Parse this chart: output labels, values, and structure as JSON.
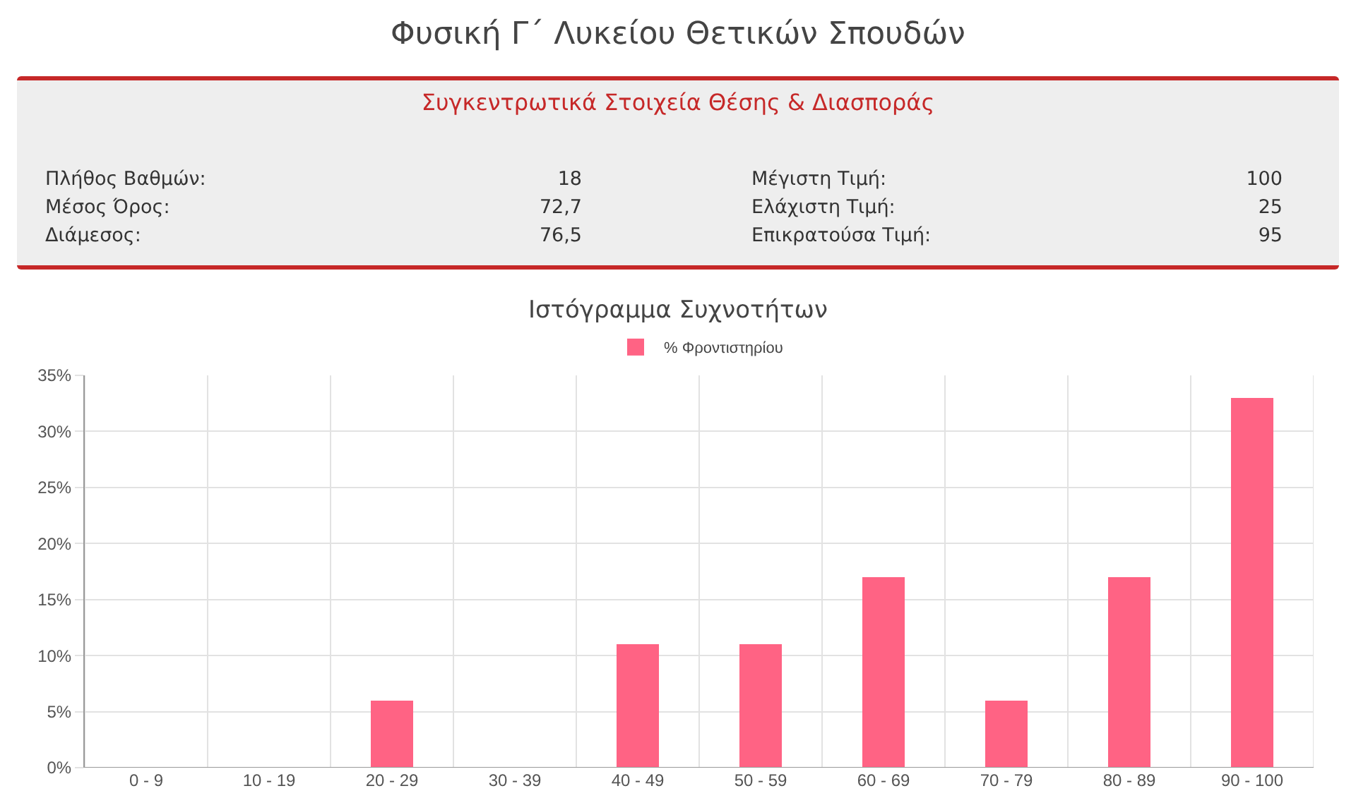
{
  "chart_data": [
    {
      "type": "other",
      "title": "Φυσική Γ΄ Λυκείου Θετικών Σπουδών",
      "subtitle": "Συγκεντρωτικά Στοιχεία Θέσης & Διασποράς",
      "annotations": [
        "Πλήθος Βαθμών:",
        "18",
        "Μέγιστη Τιμή:",
        "100",
        "Μέσος Όρος:",
        "72,7",
        "Ελάχιστη Τιμή:",
        "25",
        "Διάμεσος:",
        "76,5",
        "Επικρατούσα Τιμή:",
        "95"
      ]
    },
    {
      "type": "bar",
      "title": "Ιστόγραμμα Συχνοτήτων",
      "categories": [
        "0 - 9",
        "10 - 19",
        "20 - 29",
        "30 - 39",
        "40 - 49",
        "50 - 59",
        "60 - 69",
        "70 - 79",
        "80 - 89",
        "90 - 100"
      ],
      "series": [
        {
          "name": "% Φροντιστηρίου",
          "color": "#ff6384",
          "values": [
            0,
            0,
            6,
            0,
            11,
            11,
            17,
            6,
            17,
            33
          ]
        }
      ],
      "ylim": [
        0,
        35
      ],
      "yticks": [
        {
          "value": 0,
          "label": "0%"
        },
        {
          "value": 5,
          "label": "5%"
        },
        {
          "value": 10,
          "label": "10%"
        },
        {
          "value": 15,
          "label": "15%"
        },
        {
          "value": 20,
          "label": "20%"
        },
        {
          "value": 25,
          "label": "25%"
        },
        {
          "value": 30,
          "label": "30%"
        },
        {
          "value": 35,
          "label": "35%"
        }
      ],
      "grid": true,
      "legend": "top"
    }
  ]
}
